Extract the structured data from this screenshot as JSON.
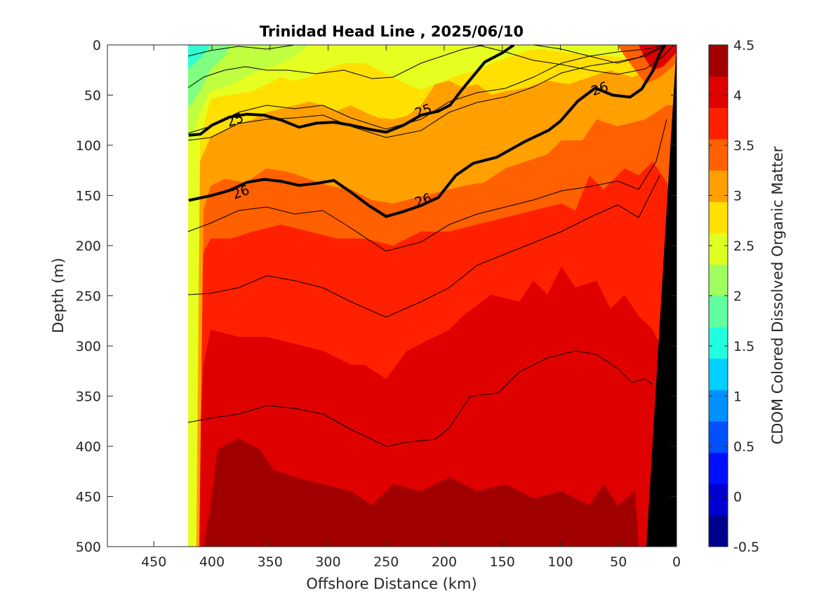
{
  "chart_data": {
    "type": "heatmap",
    "title": "Trinidad Head Line , 2025/06/10",
    "xlabel": "Offshore Distance (km)",
    "ylabel": "Depth (m)",
    "colorbar_label": "CDOM Colored Dissolved Organic Matter",
    "xlim": [
      490,
      0
    ],
    "ylim": [
      500,
      0
    ],
    "x_reversed": true,
    "y_reversed": true,
    "x_ticks": [
      450,
      400,
      350,
      300,
      250,
      200,
      150,
      100,
      50,
      0
    ],
    "y_ticks": [
      0,
      50,
      100,
      150,
      200,
      250,
      300,
      350,
      400,
      450,
      500
    ],
    "x_tick_labels": [
      "450",
      "400",
      "350",
      "300",
      "250",
      "200",
      "150",
      "100",
      "50",
      "0"
    ],
    "y_tick_labels": [
      "0",
      "50",
      "100",
      "150",
      "200",
      "250",
      "300",
      "350",
      "400",
      "450",
      "500"
    ],
    "colorbar_range": [
      -0.5,
      4.5
    ],
    "colorbar_ticks": [
      -0.5,
      0,
      0.5,
      1,
      1.5,
      2,
      2.5,
      3,
      3.5,
      4,
      4.5
    ],
    "colorbar_tick_labels": [
      "-0.5",
      "0",
      "0.5",
      "1",
      "1.5",
      "2",
      "2.5",
      "3",
      "3.5",
      "4",
      "4.5"
    ],
    "colorbar_colors": [
      "#00008f",
      "#0000d0",
      "#0010ff",
      "#0050ff",
      "#0090ff",
      "#00d0ff",
      "#20ffdf",
      "#60ff9f",
      "#9fff60",
      "#dfff20",
      "#ffe000",
      "#ffa000",
      "#ff6000",
      "#ff2000",
      "#df0000",
      "#a00000"
    ],
    "data_extent_km": [
      0,
      420
    ],
    "contour_series": [
      {
        "name": "25",
        "bold": true,
        "points": [
          [
            420,
            90
          ],
          [
            410,
            89
          ],
          [
            400,
            80
          ],
          [
            385,
            72
          ],
          [
            370,
            69
          ],
          [
            355,
            70
          ],
          [
            340,
            75
          ],
          [
            325,
            82
          ],
          [
            310,
            78
          ],
          [
            295,
            77
          ],
          [
            280,
            80
          ],
          [
            265,
            84
          ],
          [
            250,
            87
          ],
          [
            235,
            80
          ],
          [
            220,
            70
          ],
          [
            205,
            66
          ],
          [
            195,
            60
          ],
          [
            185,
            45
          ],
          [
            165,
            17
          ],
          [
            150,
            8
          ],
          [
            140,
            0
          ]
        ]
      },
      {
        "name": "26",
        "bold": true,
        "points": [
          [
            420,
            155
          ],
          [
            400,
            150
          ],
          [
            385,
            145
          ],
          [
            370,
            137
          ],
          [
            355,
            134
          ],
          [
            340,
            136
          ],
          [
            325,
            140
          ],
          [
            310,
            138
          ],
          [
            295,
            135
          ],
          [
            280,
            147
          ],
          [
            265,
            160
          ],
          [
            250,
            171
          ],
          [
            235,
            166
          ],
          [
            220,
            160
          ],
          [
            205,
            152
          ],
          [
            190,
            130
          ],
          [
            175,
            118
          ],
          [
            155,
            112
          ],
          [
            130,
            96
          ],
          [
            110,
            85
          ],
          [
            100,
            76
          ],
          [
            85,
            56
          ],
          [
            70,
            43
          ],
          [
            55,
            50
          ],
          [
            40,
            52
          ],
          [
            30,
            44
          ],
          [
            20,
            25
          ],
          [
            15,
            10
          ],
          [
            10,
            0
          ]
        ]
      }
    ],
    "contour_labels": [
      {
        "text": "25",
        "x": 380,
        "y": 75
      },
      {
        "text": "25",
        "x": 218,
        "y": 66
      },
      {
        "text": "26",
        "x": 375,
        "y": 147
      },
      {
        "text": "26",
        "x": 218,
        "y": 155
      },
      {
        "text": "26",
        "x": 66,
        "y": 44
      }
    ],
    "seafloor_color": "#000000"
  }
}
